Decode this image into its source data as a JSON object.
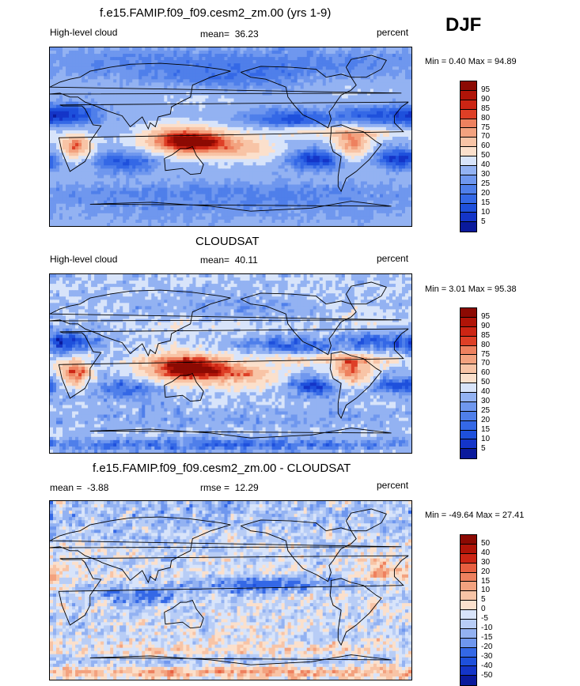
{
  "header": {
    "title": "f.e15.FAMIP.f09_f09.cesm2_zm.00 (yrs 1-9)",
    "season": "DJF"
  },
  "colors": {
    "blues": [
      "#0a1a9c",
      "#1435c8",
      "#1e50dc",
      "#3468e6",
      "#4f7fea",
      "#6f97ee",
      "#93b2f2",
      "#b8cdf6",
      "#d8e4fa"
    ],
    "reds": [
      "#fbe0cc",
      "#f8c4a6",
      "#f3a27f",
      "#ee815f",
      "#e85f40",
      "#de3f26",
      "#cc2514",
      "#b01408",
      "#8c0a03"
    ],
    "neutral": "#f2f2f2"
  },
  "chart_data": [
    {
      "type": "heatmap",
      "title": "f.e15.FAMIP.f09_f09.cesm2_zm.00 (yrs 1-9)",
      "variable": "High-level cloud",
      "units": "percent",
      "mean_label": "mean=",
      "mean": "36.23",
      "min_max": "Min =   0.40 Max =  94.89",
      "min": 0.4,
      "max": 94.89,
      "levels": [
        "95",
        "90",
        "85",
        "80",
        "75",
        "70",
        "60",
        "50",
        "40",
        "30",
        "25",
        "20",
        "15",
        "10",
        "5"
      ],
      "fields": "cloud fraction over globe; high (red) over Maritime Continent, central Africa and Amazon; low (blue) in subtropical subsidence zones"
    },
    {
      "type": "heatmap",
      "title": "CLOUDSAT",
      "variable": "High-level cloud",
      "units": "percent",
      "mean_label": "mean=",
      "mean": "40.11",
      "min_max": "Min =   3.01 Max =  95.38",
      "min": 3.01,
      "max": 95.38,
      "levels": [
        "95",
        "90",
        "85",
        "80",
        "75",
        "70",
        "60",
        "50",
        "40",
        "30",
        "25",
        "20",
        "15",
        "10",
        "5"
      ]
    },
    {
      "type": "heatmap",
      "title": "f.e15.FAMIP.f09_f09.cesm2_zm.00 - CLOUDSAT",
      "variable": "",
      "units": "percent",
      "mean_label": "mean =",
      "mean": "-3.88",
      "rmse_label": "rmse =",
      "rmse": "12.29",
      "min_max": "Min = -49.64 Max =  27.41",
      "min": -49.64,
      "max": 27.41,
      "levels": [
        "50",
        "40",
        "30",
        "20",
        "15",
        "10",
        "5",
        "0",
        "-5",
        "-10",
        "-15",
        "-20",
        "-30",
        "-40",
        "-50"
      ]
    }
  ]
}
